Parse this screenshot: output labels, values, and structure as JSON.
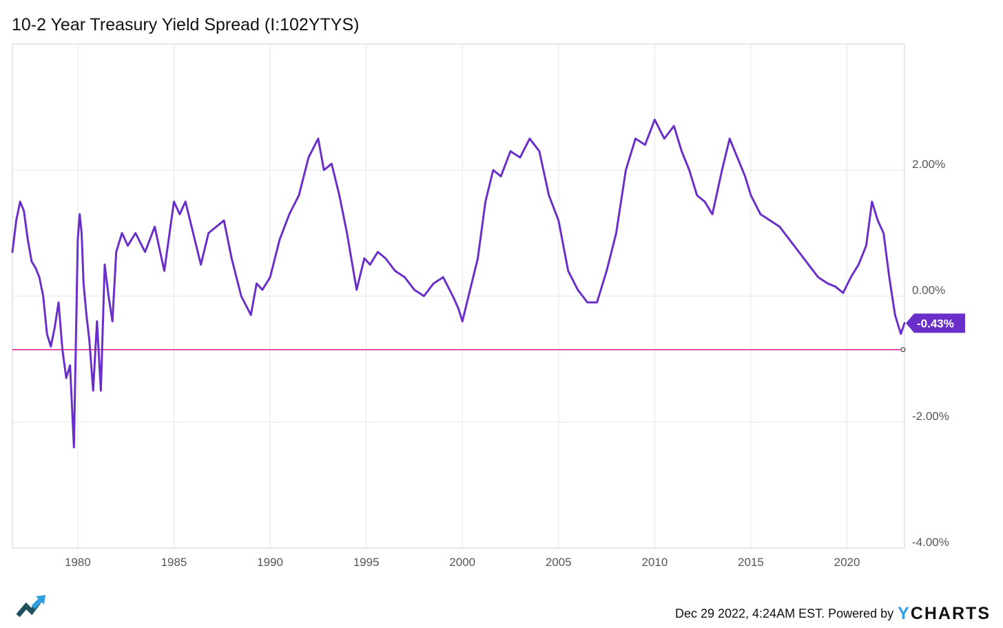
{
  "header": {
    "title": "10-2 Year Treasury Yield Spread (I:102YTYS)"
  },
  "footer": {
    "timestamp": "Dec 29 2022, 4:24AM EST. Powered by",
    "brand": "YCHARTS"
  },
  "icons": {
    "logo": "trend-arrow-logo-icon"
  },
  "colors": {
    "series": "#6a2fc8",
    "reference": "#e0198c",
    "grid": "#e6e6e6",
    "badge": "#6a2fc8"
  },
  "chart_data": {
    "type": "line",
    "title": "10-2 Year Treasury Yield Spread (I:102YTYS)",
    "xlabel": "",
    "ylabel": "",
    "xlim": [
      1976.6,
      2022.99
    ],
    "ylim": [
      -4,
      4
    ],
    "x_ticks": [
      1980,
      1985,
      1990,
      1995,
      2000,
      2005,
      2010,
      2015,
      2020
    ],
    "x_tick_labels": [
      "1980",
      "1985",
      "1990",
      "1995",
      "2000",
      "2005",
      "2010",
      "2015",
      "2020"
    ],
    "y_ticks": [
      2,
      0,
      -2,
      -4
    ],
    "y_tick_labels": [
      "2.00%",
      "0.00%",
      "-2.00%",
      "-4.00%"
    ],
    "grid": true,
    "reference_line": {
      "y": -0.85
    },
    "last_value": {
      "y": -0.43,
      "label": "-0.43%"
    },
    "series": [
      {
        "x": [
          1976.6,
          1976.8,
          1977.0,
          1977.2,
          1977.4,
          1977.6,
          1977.8,
          1978.0,
          1978.2,
          1978.4,
          1978.6,
          1978.8,
          1979.0,
          1979.2,
          1979.4,
          1979.6,
          1979.8,
          1980.0,
          1980.1,
          1980.2,
          1980.3,
          1980.45,
          1980.6,
          1980.8,
          1981.0,
          1981.2,
          1981.4,
          1981.6,
          1981.8,
          1982.0,
          1982.3,
          1982.6,
          1983.0,
          1983.5,
          1984.0,
          1984.5,
          1985.0,
          1985.3,
          1985.6,
          1986.0,
          1986.4,
          1986.8,
          1987.2,
          1987.6,
          1988.0,
          1988.5,
          1989.0,
          1989.3,
          1989.6,
          1990.0,
          1990.5,
          1991.0,
          1991.5,
          1992.0,
          1992.5,
          1992.8,
          1993.2,
          1993.6,
          1994.0,
          1994.5,
          1994.9,
          1995.2,
          1995.6,
          1996.0,
          1996.5,
          1997.0,
          1997.5,
          1998.0,
          1998.5,
          1999.0,
          1999.5,
          1999.8,
          2000.0,
          2000.4,
          2000.8,
          2001.2,
          2001.6,
          2002.0,
          2002.5,
          2003.0,
          2003.5,
          2004.0,
          2004.5,
          2005.0,
          2005.5,
          2006.0,
          2006.5,
          2007.0,
          2007.5,
          2008.0,
          2008.5,
          2009.0,
          2009.5,
          2010.0,
          2010.5,
          2011.0,
          2011.4,
          2011.8,
          2012.2,
          2012.6,
          2013.0,
          2013.5,
          2013.9,
          2014.3,
          2014.7,
          2015.0,
          2015.5,
          2016.0,
          2016.5,
          2017.0,
          2017.5,
          2018.0,
          2018.5,
          2019.0,
          2019.4,
          2019.8,
          2020.2,
          2020.6,
          2021.0,
          2021.3,
          2021.6,
          2021.9,
          2022.2,
          2022.5,
          2022.8,
          2022.99
        ],
        "y": [
          0.7,
          1.2,
          1.5,
          1.35,
          0.9,
          0.55,
          0.45,
          0.3,
          0.0,
          -0.6,
          -0.8,
          -0.5,
          -0.1,
          -0.85,
          -1.3,
          -1.1,
          -2.4,
          0.9,
          1.3,
          1.0,
          0.2,
          -0.3,
          -0.7,
          -1.5,
          -0.4,
          -1.5,
          0.5,
          0.0,
          -0.4,
          0.7,
          1.0,
          0.8,
          1.0,
          0.7,
          1.1,
          0.4,
          1.5,
          1.3,
          1.5,
          1.0,
          0.5,
          1.0,
          1.1,
          1.2,
          0.6,
          0.0,
          -0.3,
          0.2,
          0.1,
          0.3,
          0.9,
          1.3,
          1.6,
          2.2,
          2.5,
          2.0,
          2.1,
          1.6,
          1.0,
          0.1,
          0.6,
          0.5,
          0.7,
          0.6,
          0.4,
          0.3,
          0.1,
          0.0,
          0.2,
          0.3,
          0.0,
          -0.2,
          -0.4,
          0.1,
          0.6,
          1.5,
          2.0,
          1.9,
          2.3,
          2.2,
          2.5,
          2.3,
          1.6,
          1.2,
          0.4,
          0.1,
          -0.1,
          -0.1,
          0.4,
          1.0,
          2.0,
          2.5,
          2.4,
          2.8,
          2.5,
          2.7,
          2.3,
          2.0,
          1.6,
          1.5,
          1.3,
          2.0,
          2.5,
          2.2,
          1.9,
          1.6,
          1.3,
          1.2,
          1.1,
          0.9,
          0.7,
          0.5,
          0.3,
          0.2,
          0.15,
          0.05,
          0.3,
          0.5,
          0.8,
          1.5,
          1.2,
          1.0,
          0.3,
          -0.3,
          -0.6,
          -0.43
        ]
      }
    ]
  }
}
